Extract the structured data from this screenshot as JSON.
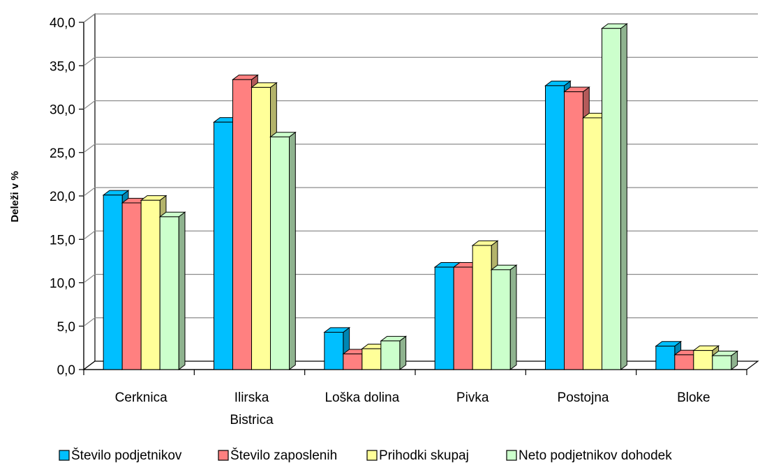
{
  "chart_data": {
    "type": "bar",
    "style": "3d-clustered",
    "title": "",
    "xlabel": "",
    "ylabel": "Deleži v %",
    "ylim": [
      0,
      40
    ],
    "yticks": [
      "0,0",
      "5,0",
      "10,0",
      "15,0",
      "20,0",
      "25,0",
      "30,0",
      "35,0",
      "40,0"
    ],
    "ytick_values": [
      0,
      5,
      10,
      15,
      20,
      25,
      30,
      35,
      40
    ],
    "grid": true,
    "legend_position": "bottom",
    "categories": [
      [
        "Cerknica"
      ],
      [
        "Ilirska",
        "Bistrica"
      ],
      [
        "Loška dolina"
      ],
      [
        "Pivka"
      ],
      [
        "Postojna"
      ],
      [
        "Bloke"
      ]
    ],
    "series": [
      {
        "name": "Število podjetnikov",
        "color": "#00bfff",
        "side": "#0086b3",
        "values": [
          20.1,
          28.5,
          4.3,
          11.8,
          32.7,
          2.7
        ]
      },
      {
        "name": "Število zaposlenih",
        "color": "#ff8080",
        "side": "#b35a5a",
        "values": [
          19.2,
          33.4,
          1.8,
          11.8,
          32.0,
          1.7
        ]
      },
      {
        "name": "Prihodki skupaj",
        "color": "#ffff99",
        "side": "#b3b36b",
        "values": [
          19.5,
          32.5,
          2.4,
          14.3,
          29.0,
          2.2
        ]
      },
      {
        "name": "Neto podjetnikov dohodek",
        "color": "#ccffcc",
        "side": "#8fb38f",
        "values": [
          17.6,
          26.8,
          3.3,
          11.5,
          39.3,
          1.6
        ]
      }
    ]
  }
}
